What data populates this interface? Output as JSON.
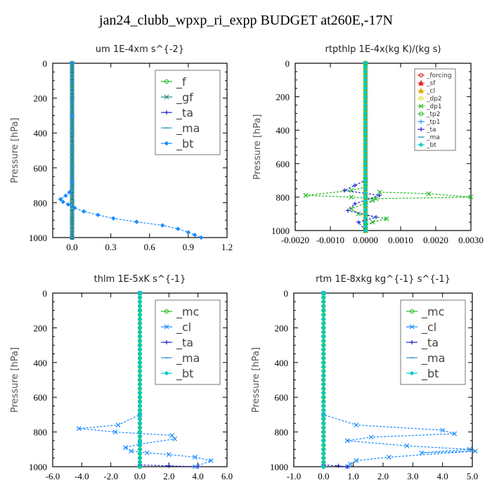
{
  "title": "jan24_clubb_wpxp_ri_expp  BUDGET at260E,-17N",
  "chart_data": [
    {
      "type": "line",
      "title": "um   1E-4xm s^{-2}",
      "ylabel": "Pressure [hPa]",
      "xlim": [
        -0.15,
        1.2
      ],
      "ylim": [
        1000,
        0
      ],
      "xticks": [
        0.0,
        0.3,
        0.6,
        0.9,
        1.2
      ],
      "xtick_labels": [
        "0.0",
        "0.3",
        "0.6",
        "0.9",
        "1.2"
      ],
      "yticks": [
        0,
        200,
        400,
        600,
        800,
        1000
      ],
      "legend_style": "large",
      "series": [
        {
          "name": "_f",
          "color": "#22bb22",
          "marker": "o",
          "x": [
            0,
            0,
            0,
            0,
            0,
            0,
            0,
            0,
            0,
            0,
            0
          ],
          "y": [
            0,
            100,
            200,
            300,
            400,
            500,
            600,
            700,
            800,
            900,
            1000
          ]
        },
        {
          "name": "_gf",
          "color": "#228888",
          "marker": "x",
          "x": [
            0,
            0,
            0,
            0,
            0,
            0,
            0,
            0,
            0,
            0,
            0
          ],
          "y": [
            0,
            100,
            200,
            300,
            400,
            500,
            600,
            700,
            800,
            900,
            1000
          ]
        },
        {
          "name": "_ta",
          "color": "#2222cc",
          "marker": "+",
          "x": [
            0,
            0,
            0,
            0,
            0,
            0,
            0,
            0,
            0,
            0,
            0
          ],
          "y": [
            0,
            100,
            200,
            300,
            400,
            500,
            600,
            700,
            800,
            900,
            1000
          ]
        },
        {
          "name": "_ma",
          "color": "#3399cc",
          "marker": "-",
          "x": [
            0,
            0,
            0,
            0,
            0,
            0,
            0,
            0,
            0,
            0,
            0
          ],
          "y": [
            0,
            100,
            200,
            300,
            400,
            500,
            600,
            700,
            800,
            900,
            1000
          ]
        },
        {
          "name": "_bt",
          "color": "#1a8cff",
          "marker": "diamond",
          "dashed": true,
          "x": [
            0,
            0,
            0,
            -0.02,
            -0.05,
            -0.09,
            -0.07,
            -0.03,
            0.02,
            0.09,
            0.2,
            0.32,
            0.5,
            0.7,
            0.82,
            0.9,
            0.95,
            1.0
          ],
          "y": [
            0,
            300,
            680,
            740,
            760,
            780,
            795,
            810,
            830,
            850,
            870,
            890,
            910,
            930,
            950,
            970,
            985,
            1000
          ]
        }
      ]
    },
    {
      "type": "line",
      "title": "rtpthlp   1E-4x(kg K)/(kg s)",
      "ylabel": "Pressure [hPa]",
      "xlim": [
        -0.002,
        0.003
      ],
      "ylim": [
        1000,
        0
      ],
      "xticks": [
        -0.002,
        -0.001,
        0.0,
        0.001,
        0.002,
        0.003
      ],
      "xtick_labels": [
        "-0.0020",
        "-0.0010",
        "0.0000",
        "0.0010",
        "0.0020",
        "0.0030"
      ],
      "yticks": [
        0,
        200,
        400,
        600,
        800,
        1000
      ],
      "legend_style": "small",
      "series": [
        {
          "name": "_forcing",
          "color": "#dd2222",
          "marker": "o",
          "x": [
            0,
            0,
            0,
            0,
            0,
            0,
            0,
            0,
            0,
            0,
            0
          ],
          "y": [
            0,
            100,
            200,
            300,
            400,
            500,
            600,
            700,
            800,
            900,
            1000
          ]
        },
        {
          "name": "_sf",
          "color": "#dd2222",
          "marker": "triangle",
          "x": [
            0,
            0
          ],
          "y": [
            0,
            1000
          ]
        },
        {
          "name": "_cl",
          "color": "#ddaa00",
          "marker": "triangle",
          "x": [
            0,
            0
          ],
          "y": [
            0,
            1000
          ]
        },
        {
          "name": "_dp2",
          "color": "#dddd22",
          "marker": "o",
          "x": [
            0,
            0
          ],
          "y": [
            0,
            1000
          ]
        },
        {
          "name": "_dp1",
          "color": "#22bb22",
          "marker": "x",
          "x": [
            0,
            0,
            0,
            -0.0004,
            -0.0017,
            -0.0004,
            0.0003,
            0.003,
            0.0018,
            0.0004,
            0.0002,
            -0.0004,
            -0.0002,
            0.0006,
            0.0002,
            0,
            0
          ],
          "y": [
            0,
            700,
            740,
            760,
            790,
            800,
            810,
            800,
            780,
            770,
            820,
            870,
            900,
            930,
            950,
            970,
            1000
          ]
        },
        {
          "name": "_tp2",
          "color": "#22bb22",
          "marker": "o",
          "x": [
            0,
            0,
            0,
            0,
            0,
            0,
            0,
            0,
            0,
            0,
            0
          ],
          "y": [
            0,
            100,
            200,
            300,
            400,
            500,
            600,
            700,
            800,
            900,
            1000
          ]
        },
        {
          "name": "_tp1",
          "color": "#1a8cff",
          "marker": "+",
          "x": [
            0,
            0
          ],
          "y": [
            0,
            1000
          ]
        },
        {
          "name": "_ta",
          "color": "#2222cc",
          "marker": "+",
          "dashed": true,
          "x": [
            0,
            0,
            -0.0003,
            -0.0006,
            0.0004,
            -0.0003,
            -0.0005,
            0.0003,
            -0.0002,
            0
          ],
          "y": [
            0,
            700,
            730,
            760,
            790,
            840,
            880,
            920,
            950,
            1000
          ]
        },
        {
          "name": "_ma",
          "color": "#3399cc",
          "marker": "-",
          "x": [
            0,
            0
          ],
          "y": [
            0,
            1000
          ]
        },
        {
          "name": "_bt",
          "color": "#00cccc",
          "marker": "diamond",
          "x": [
            0,
            0
          ],
          "y": [
            0,
            1000
          ]
        }
      ]
    },
    {
      "type": "line",
      "title": "thlm   1E-5xK s^{-1}",
      "ylabel": "Pressure [hPa]",
      "xlim": [
        -6.0,
        6.0
      ],
      "ylim": [
        1000,
        0
      ],
      "xticks": [
        -6,
        -4,
        -2,
        0,
        2,
        4,
        6
      ],
      "xtick_labels": [
        "-6.0",
        "-4.0",
        "-2.0",
        "0.0",
        "2.0",
        "4.0",
        "6.0"
      ],
      "yticks": [
        0,
        200,
        400,
        600,
        800,
        1000
      ],
      "legend_style": "large",
      "series": [
        {
          "name": "_mc",
          "color": "#22bb22",
          "marker": "o",
          "x": [
            0,
            0,
            0,
            0,
            0,
            0,
            0,
            0,
            0,
            0,
            0
          ],
          "y": [
            0,
            100,
            200,
            300,
            400,
            500,
            600,
            700,
            800,
            900,
            1000
          ]
        },
        {
          "name": "_cl",
          "color": "#1a8cff",
          "marker": "x",
          "x": [
            0,
            0,
            -1.5,
            -4.2,
            -1.7,
            2.2,
            2.4,
            0,
            -1.0,
            -0.6,
            0.5,
            2.0,
            3.8,
            4.9,
            3.8
          ],
          "y": [
            0,
            700,
            760,
            780,
            800,
            820,
            840,
            870,
            890,
            910,
            920,
            930,
            945,
            965,
            1000
          ]
        },
        {
          "name": "_ta",
          "color": "#2222cc",
          "marker": "+",
          "x": [
            0,
            0,
            2,
            4
          ],
          "y": [
            0,
            990,
            995,
            1000
          ]
        },
        {
          "name": "_ma",
          "color": "#3399cc",
          "marker": "-",
          "x": [
            0,
            0
          ],
          "y": [
            0,
            1000
          ]
        },
        {
          "name": "_bt",
          "color": "#00cccc",
          "marker": "diamond",
          "x": [
            0,
            0
          ],
          "y": [
            0,
            1000
          ]
        }
      ]
    },
    {
      "type": "line",
      "title": "rtm   1E-8xkg kg^{-1} s^{-1}",
      "ylabel": "Pressure [hPa]",
      "xlim": [
        -1.0,
        5.0
      ],
      "ylim": [
        1000,
        0
      ],
      "xticks": [
        -1,
        0,
        1,
        2,
        3,
        4,
        5
      ],
      "xtick_labels": [
        "-1.0",
        "0.0",
        "1.0",
        "2.0",
        "3.0",
        "4.0",
        "5.0"
      ],
      "yticks": [
        0,
        200,
        400,
        600,
        800,
        1000
      ],
      "legend_style": "large",
      "series": [
        {
          "name": "_mc",
          "color": "#22bb22",
          "marker": "o",
          "x": [
            0,
            0,
            0,
            0,
            0,
            0,
            0,
            0,
            0,
            0,
            0
          ],
          "y": [
            0,
            100,
            200,
            300,
            400,
            500,
            600,
            700,
            800,
            900,
            1000
          ]
        },
        {
          "name": "_cl",
          "color": "#1a8cff",
          "marker": "x",
          "x": [
            0,
            0,
            1.1,
            4.0,
            4.4,
            1.6,
            0.8,
            2.8,
            4.9,
            3.3,
            5.1,
            2.2,
            1.1,
            0.9,
            0.8
          ],
          "y": [
            0,
            700,
            760,
            790,
            810,
            830,
            850,
            880,
            900,
            920,
            910,
            945,
            965,
            985,
            1000
          ]
        },
        {
          "name": "_ta",
          "color": "#2222cc",
          "marker": "+",
          "x": [
            0,
            0,
            0.5,
            0.8
          ],
          "y": [
            0,
            990,
            995,
            1000
          ]
        },
        {
          "name": "_ma",
          "color": "#3399cc",
          "marker": "-",
          "x": [
            0,
            0
          ],
          "y": [
            0,
            1000
          ]
        },
        {
          "name": "_bt",
          "color": "#00cccc",
          "marker": "diamond",
          "x": [
            0,
            0
          ],
          "y": [
            0,
            1000
          ]
        }
      ]
    }
  ]
}
